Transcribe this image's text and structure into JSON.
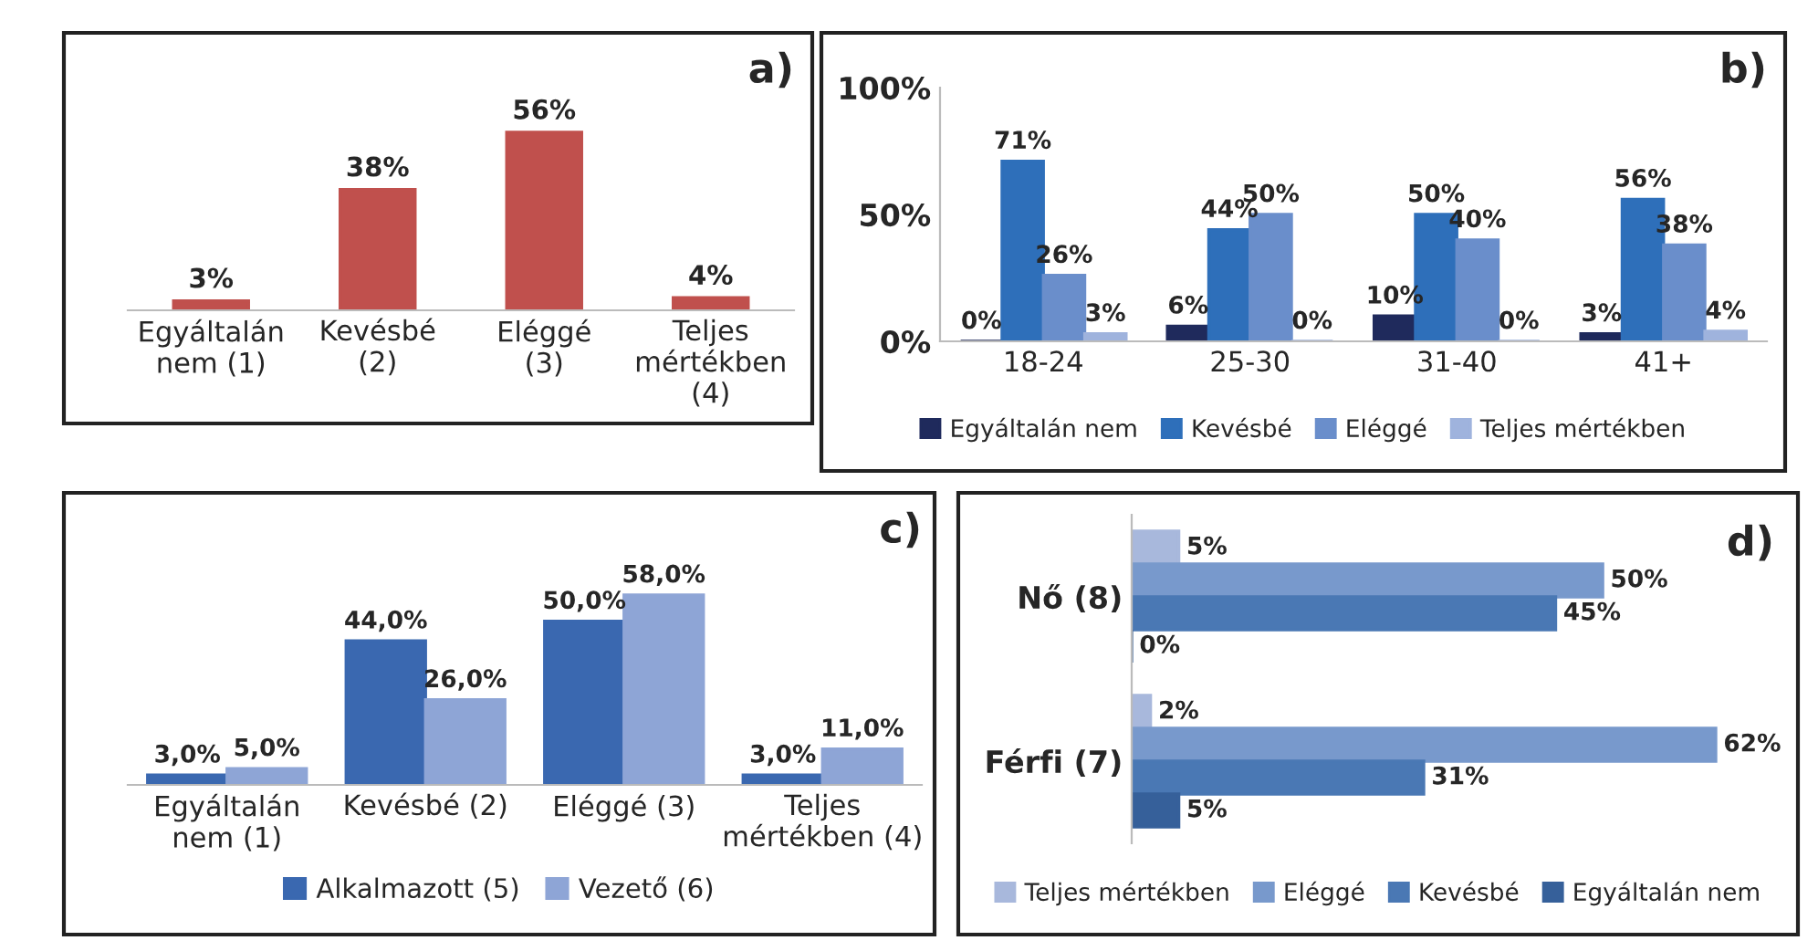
{
  "chart_data": [
    {
      "type": "bar",
      "title": "a)",
      "categories": [
        "Egyáltalán\nnem (1)",
        "Kevésbé\n(2)",
        "Eléggé\n(3)",
        "Teljes\nmértékben\n(4)"
      ],
      "values": [
        3,
        38,
        56,
        4
      ],
      "value_labels": [
        "3%",
        "38%",
        "56%",
        "4%"
      ],
      "color": "#c0504d",
      "tick_labels": "x",
      "grid": false,
      "legend": false
    },
    {
      "type": "bar",
      "title": "b)",
      "categories": [
        "18-24",
        "25-30",
        "31-40",
        "41+"
      ],
      "series": [
        {
          "name": "Egyáltalán nem",
          "color": "#1f2a5c",
          "values": [
            0,
            6,
            10,
            3
          ],
          "value_labels": [
            "0%",
            "6%",
            "10%",
            "3%"
          ]
        },
        {
          "name": "Kevésbé",
          "color": "#2e6fba",
          "values": [
            71,
            44,
            50,
            56
          ],
          "value_labels": [
            "71%",
            "44%",
            "50%",
            "56%"
          ]
        },
        {
          "name": "Eléggé",
          "color": "#6a8ecb",
          "values": [
            26,
            50,
            40,
            38
          ],
          "value_labels": [
            "26%",
            "50%",
            "40%",
            "38%"
          ]
        },
        {
          "name": "Teljes mértékben",
          "color": "#9fb3dd",
          "values": [
            3,
            0,
            0,
            4
          ],
          "value_labels": [
            "3%",
            "0%",
            "0%",
            "4%"
          ]
        }
      ],
      "ylim": [
        0,
        100
      ],
      "yticks": [
        {
          "value": 0,
          "label": "0%"
        },
        {
          "value": 50,
          "label": "50%"
        },
        {
          "value": 100,
          "label": "100%"
        }
      ],
      "grid": false,
      "legend": "bottom"
    },
    {
      "type": "bar",
      "title": "c)",
      "categories": [
        "Egyáltalán\nnem (1)",
        "Kevésbé (2)",
        "Eléggé (3)",
        "Teljes\nmértékben (4)"
      ],
      "series": [
        {
          "name": "Alkalmazott (5)",
          "color": "#3a68b0",
          "values": [
            3,
            44,
            50,
            3
          ],
          "value_labels": [
            "3,0%",
            "44,0%",
            "50,0%",
            "3,0%"
          ]
        },
        {
          "name": "Vezető (6)",
          "color": "#8ea5d6",
          "values": [
            5,
            26,
            58,
            11
          ],
          "value_labels": [
            "5,0%",
            "26,0%",
            "58,0%",
            "11,0%"
          ]
        }
      ],
      "tick_labels": "x",
      "grid": false,
      "legend": "bottom"
    },
    {
      "type": "bar",
      "title": "d)",
      "orientation": "horizontal",
      "categories": [
        "Nő (8)",
        "Férfi (7)"
      ],
      "series": [
        {
          "name": "Teljes mértékben",
          "color": "#a8b8dc",
          "values": [
            5,
            2
          ],
          "value_labels": [
            "5%",
            "2%"
          ]
        },
        {
          "name": "Eléggé",
          "color": "#7899cc",
          "values": [
            50,
            62
          ],
          "value_labels": [
            "50%",
            "62%"
          ]
        },
        {
          "name": "Kevésbé",
          "color": "#4a78b4",
          "values": [
            45,
            31
          ],
          "value_labels": [
            "45%",
            "31%"
          ]
        },
        {
          "name": "Egyáltalán nem",
          "color": "#36609a",
          "values": [
            0,
            5
          ],
          "value_labels": [
            "0%",
            "5%"
          ]
        }
      ],
      "tick_labels": "y",
      "grid": false,
      "legend": "bottom"
    }
  ]
}
